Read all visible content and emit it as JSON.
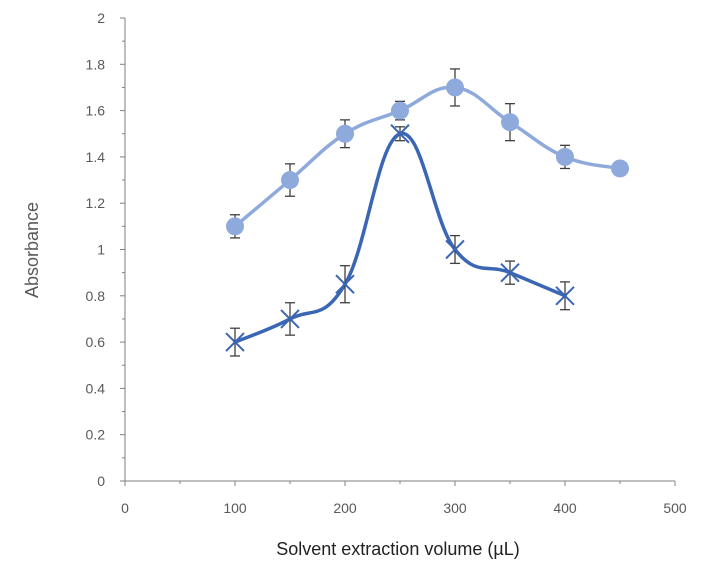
{
  "chart_data": {
    "type": "line",
    "title": "",
    "xlabel": "Solvent extraction volume (µL)",
    "ylabel": "Absorbance",
    "xlim": [
      0,
      500
    ],
    "ylim": [
      0,
      2
    ],
    "x_ticks": [
      "0",
      "100",
      "200",
      "300",
      "400",
      "500"
    ],
    "y_ticks": [
      "0",
      "0.2",
      "0.4",
      "0.6",
      "0.8",
      "1",
      "1.2",
      "1.4",
      "1.6",
      "1.8",
      "2"
    ],
    "grid": false,
    "legend": "none",
    "series": [
      {
        "color": "#8EA9DB",
        "marker": "circle",
        "smooth": true,
        "points": [
          {
            "x": 100,
            "y": 1.1,
            "err": 0.05
          },
          {
            "x": 150,
            "y": 1.3,
            "err": 0.07
          },
          {
            "x": 200,
            "y": 1.5,
            "err": 0.06
          },
          {
            "x": 250,
            "y": 1.6,
            "err": 0.04
          },
          {
            "x": 300,
            "y": 1.7,
            "err": 0.08
          },
          {
            "x": 350,
            "y": 1.55,
            "err": 0.08
          },
          {
            "x": 400,
            "y": 1.4,
            "err": 0.05
          },
          {
            "x": 450,
            "y": 1.35,
            "err": 0.0
          }
        ]
      },
      {
        "color": "#3A66B5",
        "marker": "x",
        "smooth": true,
        "points": [
          {
            "x": 100,
            "y": 0.6,
            "err": 0.06
          },
          {
            "x": 150,
            "y": 0.7,
            "err": 0.07
          },
          {
            "x": 200,
            "y": 0.85,
            "err": 0.08
          },
          {
            "x": 250,
            "y": 1.5,
            "err": 0.03
          },
          {
            "x": 300,
            "y": 1.0,
            "err": 0.06
          },
          {
            "x": 350,
            "y": 0.9,
            "err": 0.05
          },
          {
            "x": 400,
            "y": 0.8,
            "err": 0.06
          }
        ]
      }
    ]
  }
}
